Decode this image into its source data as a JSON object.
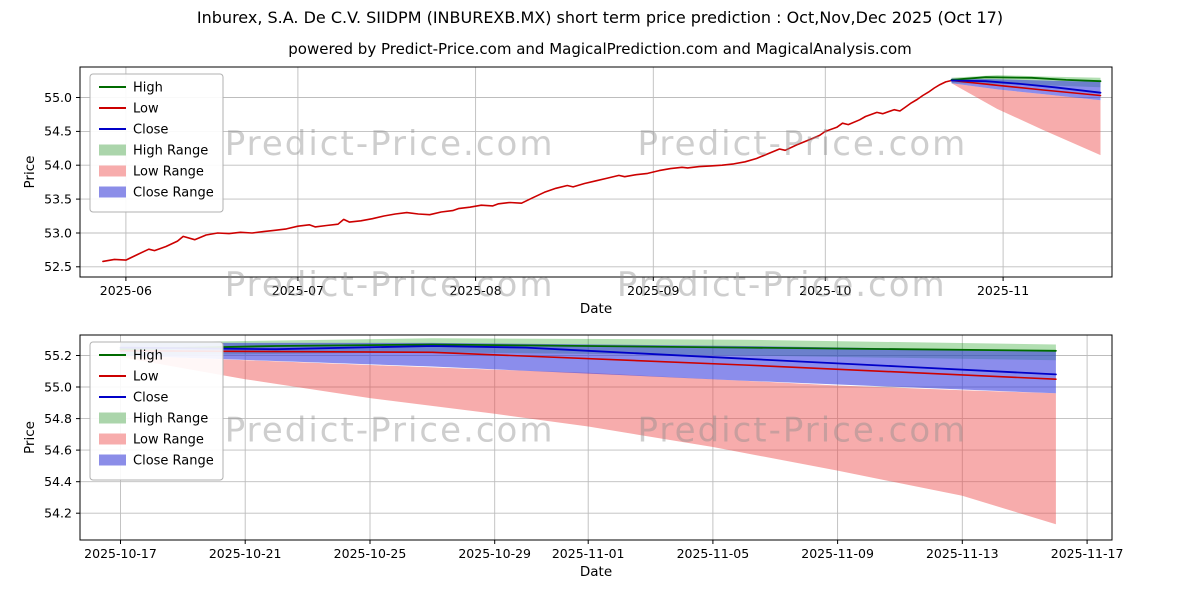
{
  "figure": {
    "title": "Inburex, S.A. De C.V. SIIDPM (INBUREXB.MX) short term price prediction : Oct,Nov,Dec 2025 (Oct 17)",
    "subtitle": "powered by Predict-Price.com and MagicalPrediction.com and MagicalAnalysis.com",
    "watermark_text": "Predict-Price.com",
    "background": "#ffffff"
  },
  "colors": {
    "high_line": "#006b00",
    "low_line": "#cc0000",
    "close_line": "#0000c8",
    "high_range_fill": "rgba(0,150,0,0.30)",
    "low_range_fill": "rgba(238,70,70,0.45)",
    "close_range_fill": "rgba(55,58,222,0.58)",
    "grid": "#bdbdbd"
  },
  "chart_data": [
    {
      "name": "chart-history-prediction",
      "type": "line",
      "xlabel": "Date",
      "ylabel": "Price",
      "xlim": [
        -2,
        178
      ],
      "ylim": [
        52.35,
        55.45
      ],
      "grid": true,
      "legend_position": "top-left",
      "xticks": [
        {
          "v": 6,
          "label": "2025-06"
        },
        {
          "v": 36,
          "label": "2025-07"
        },
        {
          "v": 67,
          "label": "2025-08"
        },
        {
          "v": 98,
          "label": "2025-09"
        },
        {
          "v": 128,
          "label": "2025-10"
        },
        {
          "v": 159,
          "label": "2025-11"
        }
      ],
      "yticks": [
        {
          "v": 52.5,
          "label": "52.5"
        },
        {
          "v": 53.0,
          "label": "53.0"
        },
        {
          "v": 53.5,
          "label": "53.5"
        },
        {
          "v": 54.0,
          "label": "54.0"
        },
        {
          "v": 54.5,
          "label": "54.5"
        },
        {
          "v": 55.0,
          "label": "55.0"
        }
      ],
      "legend": [
        {
          "label": "High",
          "type": "line",
          "color": "#006b00"
        },
        {
          "label": "Low",
          "type": "line",
          "color": "#cc0000"
        },
        {
          "label": "Close",
          "type": "line",
          "color": "#0000c8"
        },
        {
          "label": "High Range",
          "type": "band",
          "color": "#abd5ab"
        },
        {
          "label": "Low Range",
          "type": "band",
          "color": "#f7acac"
        },
        {
          "label": "Close Range",
          "type": "band",
          "color": "#8b8de8"
        }
      ],
      "bands": [
        {
          "name": "High Range",
          "fill": "rgba(0,150,0,0.30)",
          "x": [
            150,
            158,
            166,
            176
          ],
          "upper": [
            55.29,
            55.33,
            55.31,
            55.29
          ],
          "lower": [
            55.21,
            55.2,
            55.18,
            55.15
          ]
        },
        {
          "name": "Low Range",
          "fill": "rgba(238,70,70,0.45)",
          "x": [
            150,
            158,
            166,
            176
          ],
          "upper": [
            55.21,
            55.12,
            55.05,
            54.96
          ],
          "lower": [
            55.21,
            54.83,
            54.52,
            54.15
          ]
        },
        {
          "name": "Close Range",
          "fill": "rgba(55,58,222,0.58)",
          "x": [
            150,
            158,
            166,
            176
          ],
          "upper": [
            55.28,
            55.27,
            55.25,
            55.23
          ],
          "lower": [
            55.21,
            55.12,
            55.05,
            54.96
          ]
        }
      ],
      "series": [
        {
          "name": "Low",
          "color": "#cc0000",
          "width": 1.6,
          "x": [
            2,
            4,
            6,
            8,
            10,
            11,
            13,
            15,
            16,
            18,
            20,
            22,
            24,
            26,
            28,
            30,
            32,
            34,
            36,
            38,
            39,
            41,
            43,
            44,
            45,
            47,
            49,
            51,
            53,
            55,
            57,
            59,
            61,
            63,
            64,
            66,
            68,
            70,
            71,
            73,
            75,
            77,
            79,
            81,
            83,
            84,
            86,
            88,
            90,
            92,
            93,
            95,
            97,
            99,
            101,
            103,
            104,
            106,
            108,
            110,
            112,
            114,
            116,
            118,
            120,
            121,
            123,
            125,
            127,
            128,
            130,
            131,
            132,
            134,
            135,
            137,
            138,
            140,
            141,
            142,
            143,
            144,
            145,
            146,
            147,
            148,
            149,
            150,
            158,
            166,
            176
          ],
          "y": [
            52.58,
            52.61,
            52.6,
            52.68,
            52.76,
            52.74,
            52.8,
            52.88,
            52.95,
            52.9,
            52.97,
            53.0,
            52.99,
            53.01,
            53.0,
            53.02,
            53.04,
            53.06,
            53.1,
            53.12,
            53.09,
            53.11,
            53.13,
            53.2,
            53.16,
            53.18,
            53.21,
            53.25,
            53.28,
            53.3,
            53.28,
            53.27,
            53.31,
            53.33,
            53.36,
            53.38,
            53.41,
            53.4,
            53.43,
            53.45,
            53.44,
            53.52,
            53.6,
            53.66,
            53.7,
            53.68,
            53.73,
            53.77,
            53.81,
            53.85,
            53.83,
            53.86,
            53.88,
            53.92,
            53.95,
            53.97,
            53.96,
            53.98,
            53.99,
            54.0,
            54.02,
            54.05,
            54.1,
            54.17,
            54.24,
            54.22,
            54.3,
            54.37,
            54.44,
            54.5,
            54.56,
            54.62,
            54.6,
            54.67,
            54.72,
            54.78,
            54.76,
            54.82,
            54.8,
            54.86,
            54.92,
            54.97,
            55.03,
            55.08,
            55.14,
            55.19,
            55.23,
            55.25,
            55.18,
            55.11,
            55.03
          ]
        },
        {
          "name": "High",
          "color": "#006b00",
          "width": 1.8,
          "x": [
            150,
            156,
            164,
            170,
            176
          ],
          "y": [
            55.26,
            55.3,
            55.29,
            55.26,
            55.24
          ]
        },
        {
          "name": "Close",
          "color": "#0000c8",
          "width": 1.8,
          "x": [
            150,
            156,
            162,
            168,
            176
          ],
          "y": [
            55.25,
            55.24,
            55.2,
            55.15,
            55.07
          ]
        }
      ],
      "watermarks": [
        {
          "fx": 0.3,
          "fy": 0.42
        },
        {
          "fx": 0.7,
          "fy": 0.42
        },
        {
          "fx": 0.3,
          "fy": 1.09
        },
        {
          "fx": 0.68,
          "fy": 1.09
        }
      ]
    },
    {
      "name": "chart-prediction-zoom",
      "type": "line",
      "xlabel": "Date",
      "ylabel": "Price",
      "xlim": [
        -1.3,
        31.8
      ],
      "ylim": [
        54.03,
        55.33
      ],
      "grid": true,
      "legend_position": "top-left",
      "xticks": [
        {
          "v": 0,
          "label": "2025-10-17"
        },
        {
          "v": 4,
          "label": "2025-10-21"
        },
        {
          "v": 8,
          "label": "2025-10-25"
        },
        {
          "v": 12,
          "label": "2025-10-29"
        },
        {
          "v": 15,
          "label": "2025-11-01"
        },
        {
          "v": 19,
          "label": "2025-11-05"
        },
        {
          "v": 23,
          "label": "2025-11-09"
        },
        {
          "v": 27,
          "label": "2025-11-13"
        },
        {
          "v": 31,
          "label": "2025-11-17"
        }
      ],
      "yticks": [
        {
          "v": 54.2,
          "label": "54.2"
        },
        {
          "v": 54.4,
          "label": "54.4"
        },
        {
          "v": 54.6,
          "label": "54.6"
        },
        {
          "v": 54.8,
          "label": "54.8"
        },
        {
          "v": 55.0,
          "label": "55.0"
        },
        {
          "v": 55.2,
          "label": "55.2"
        }
      ],
      "legend": [
        {
          "label": "High",
          "type": "line",
          "color": "#006b00"
        },
        {
          "label": "Low",
          "type": "line",
          "color": "#cc0000"
        },
        {
          "label": "Close",
          "type": "line",
          "color": "#0000c8"
        },
        {
          "label": "High Range",
          "type": "band",
          "color": "#abd5ab"
        },
        {
          "label": "Low Range",
          "type": "band",
          "color": "#f7acac"
        },
        {
          "label": "Close Range",
          "type": "band",
          "color": "#8b8de8"
        }
      ],
      "bands": [
        {
          "name": "High Range",
          "fill": "rgba(0,150,0,0.30)",
          "x": [
            0,
            10,
            20,
            30
          ],
          "upper": [
            55.28,
            55.31,
            55.3,
            55.27
          ],
          "lower": [
            55.2,
            55.22,
            55.2,
            55.17
          ]
        },
        {
          "name": "Low Range",
          "fill": "rgba(238,70,70,0.45)",
          "x": [
            0,
            4,
            8,
            12,
            15,
            19,
            23,
            27,
            30
          ],
          "upper": [
            55.2,
            55.17,
            55.14,
            55.11,
            55.09,
            55.05,
            55.01,
            54.98,
            54.96
          ],
          "lower": [
            55.19,
            55.05,
            54.93,
            54.83,
            54.75,
            54.62,
            54.47,
            54.31,
            54.13
          ]
        },
        {
          "name": "Close Range",
          "fill": "rgba(55,58,222,0.58)",
          "x": [
            0,
            10,
            20,
            30
          ],
          "upper": [
            55.28,
            55.28,
            55.26,
            55.23
          ],
          "lower": [
            55.2,
            55.13,
            55.04,
            54.96
          ]
        }
      ],
      "series": [
        {
          "name": "Low",
          "color": "#cc0000",
          "width": 1.6,
          "x": [
            0,
            10,
            20,
            30
          ],
          "y": [
            55.23,
            55.22,
            55.14,
            55.05
          ]
        },
        {
          "name": "High",
          "color": "#006b00",
          "width": 1.8,
          "x": [
            0,
            5,
            10,
            15,
            20,
            25,
            30
          ],
          "y": [
            55.24,
            55.26,
            55.27,
            55.26,
            55.25,
            55.24,
            55.23
          ]
        },
        {
          "name": "Close",
          "color": "#0000c8",
          "width": 1.8,
          "x": [
            0,
            5,
            10,
            13,
            15,
            20,
            25,
            30
          ],
          "y": [
            55.25,
            55.24,
            55.26,
            55.25,
            55.23,
            55.18,
            55.13,
            55.08
          ]
        }
      ],
      "watermarks": [
        {
          "fx": 0.3,
          "fy": 0.52
        },
        {
          "fx": 0.7,
          "fy": 0.52
        }
      ]
    }
  ]
}
